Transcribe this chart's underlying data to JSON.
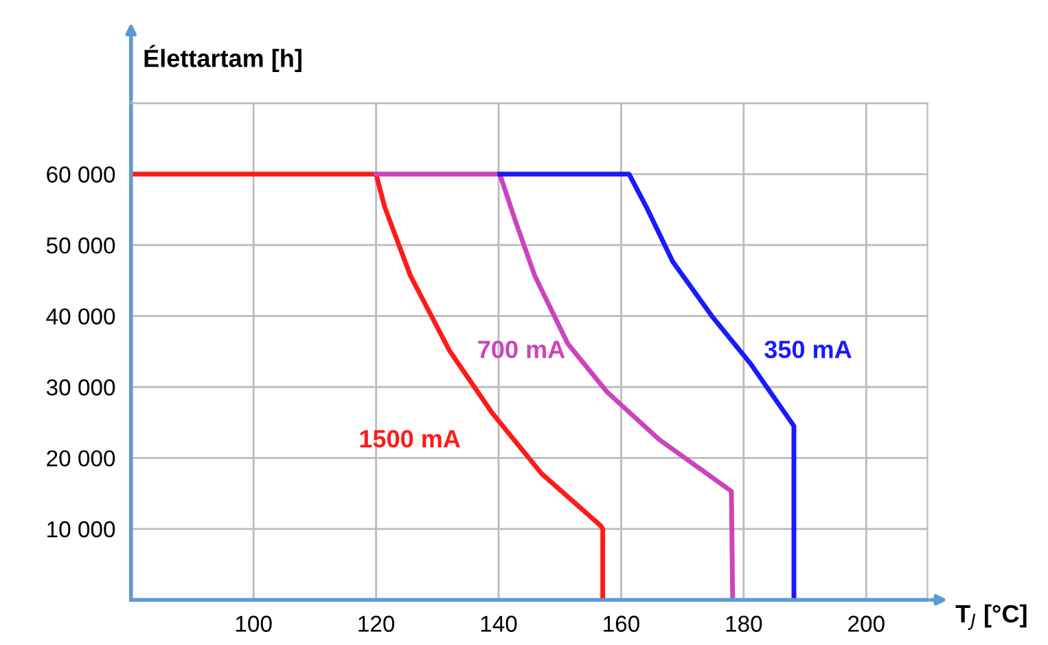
{
  "chart_data": {
    "type": "line",
    "ylabel": "Élettartam [h]",
    "xlabel": "T$_{J}$ [°C]",
    "xlim": [
      80,
      210
    ],
    "ylim": [
      0,
      70000
    ],
    "xticks": [
      100,
      120,
      140,
      160,
      180,
      200
    ],
    "yticks": [
      {
        "value": 10000,
        "label": "10 000"
      },
      {
        "value": 20000,
        "label": "20 000"
      },
      {
        "value": 30000,
        "label": "30 000"
      },
      {
        "value": 40000,
        "label": "40 000"
      },
      {
        "value": 50000,
        "label": "50 000"
      },
      {
        "value": 60000,
        "label": "60 000"
      },
      {
        "value": 70000,
        "label": null
      }
    ],
    "grid": true,
    "marker": "none",
    "line_style": "solid",
    "series": [
      {
        "color": "#ff1a1a",
        "x": [
          80,
          120,
          121.4,
          125.6,
          132,
          138.9,
          147,
          156.6,
          157,
          157
        ],
        "values": [
          60000,
          60000,
          55400,
          45700,
          35100,
          26400,
          17800,
          10500,
          10000,
          0
        ]
      },
      {
        "color": "#cc44bb",
        "x": [
          120,
          140.2,
          142.7,
          145.9,
          151.3,
          157.7,
          166.2,
          178,
          178.2
        ],
        "values": [
          60000,
          60000,
          53500,
          45700,
          36100,
          29300,
          22600,
          15300,
          0
        ]
      },
      {
        "color": "#1a1aff",
        "x": [
          140.2,
          161.3,
          164.1,
          168.4,
          174.8,
          181.2,
          188.2,
          188.2
        ],
        "values": [
          60000,
          60000,
          55400,
          47700,
          40000,
          33200,
          24500,
          0
        ]
      }
    ],
    "annotations": [
      "1500 mA",
      "700 mA",
      "350 mA"
    ]
  }
}
